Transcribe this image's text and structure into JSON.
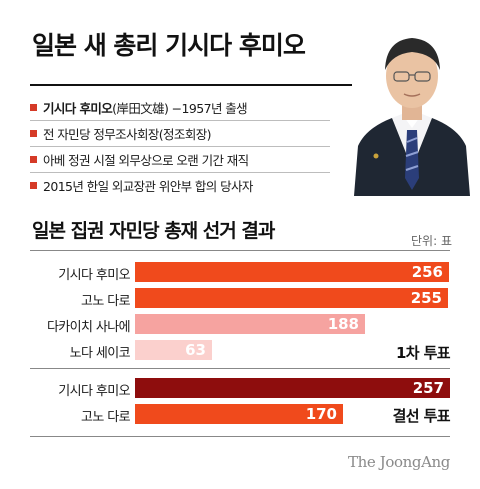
{
  "title": "일본 새 총리 기시다 후미오",
  "facts": [
    {
      "strong": "기시다 후미오",
      "rest": "(岸田文雄) −1957년 출생"
    },
    {
      "strong": "",
      "rest": "전 자민당 정무조사회장(정조회장)"
    },
    {
      "strong": "",
      "rest": "아베 정권 시절 외무상으로 오랜 기간 재직"
    },
    {
      "strong": "",
      "rest": "2015년 한일 외교장관 위안부 합의 당사자"
    }
  ],
  "chart_title": "일본 집권 자민당 총재 선거 결과",
  "unit_label": "단위: 표",
  "source": "The JoongAng",
  "colors": {
    "accent": "#d53a27",
    "round1_top": "#f04a1c",
    "round1_mid": "#f6a3a0",
    "round1_low": "#fbd0cd",
    "final_winner": "#8e0d0d",
    "final_runner": "#f04a1c"
  },
  "chart_data": {
    "type": "bar",
    "orientation": "horizontal",
    "title": "일본 집권 자민당 총재 선거 결과",
    "unit": "단위: 표",
    "groups": [
      {
        "name": "1차 투표",
        "categories": [
          "기시다 후미오",
          "고노 다로",
          "다카이치 사나에",
          "노다 세이코"
        ],
        "values": [
          256,
          255,
          188,
          63
        ]
      },
      {
        "name": "결선 투표",
        "categories": [
          "기시다 후미오",
          "고노 다로"
        ],
        "values": [
          257,
          170
        ]
      }
    ],
    "xlim": [
      0,
      257
    ],
    "grid": false,
    "legend": "none"
  }
}
